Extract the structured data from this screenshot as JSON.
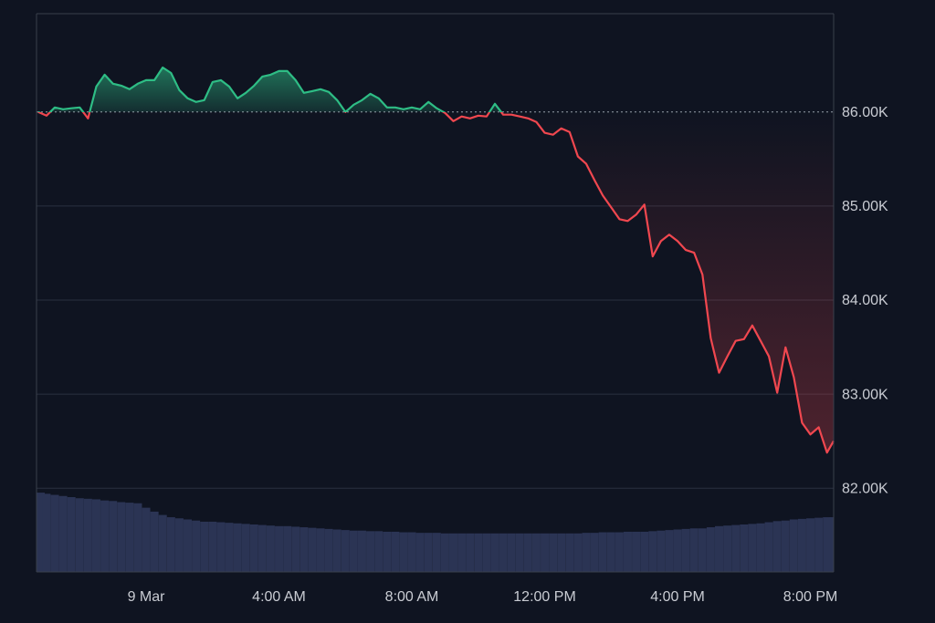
{
  "chart_data": {
    "type": "line",
    "x": [
      -3.25,
      -3.0,
      -2.75,
      -2.5,
      -2.25,
      -2.0,
      -1.75,
      -1.5,
      -1.25,
      -1.0,
      -0.75,
      -0.5,
      -0.25,
      0,
      0.25,
      0.5,
      0.75,
      1.0,
      1.25,
      1.5,
      1.75,
      2.0,
      2.25,
      2.5,
      2.75,
      3.0,
      3.25,
      3.5,
      3.75,
      4.0,
      4.25,
      4.5,
      4.75,
      5.0,
      5.25,
      5.5,
      5.75,
      6.0,
      6.25,
      6.5,
      6.75,
      7.0,
      7.25,
      7.5,
      7.75,
      8.0,
      8.25,
      8.5,
      8.75,
      9.0,
      9.25,
      9.5,
      9.75,
      10.0,
      10.25,
      10.5,
      10.75,
      11.0,
      11.25,
      11.5,
      11.75,
      12.0,
      12.25,
      12.5,
      12.75,
      13.0,
      13.25,
      13.5,
      13.75,
      14.0,
      14.25,
      14.5,
      14.75,
      15.0,
      15.25,
      15.5,
      15.75,
      16.0,
      16.25,
      16.5,
      16.75,
      17.0,
      17.25,
      17.5,
      17.75,
      18.0,
      18.25,
      18.5,
      18.75,
      19.0,
      19.25,
      19.5,
      19.75,
      20.0,
      20.25,
      20.5,
      20.7
    ],
    "series": [
      {
        "values": [
          86000,
          85961,
          86048,
          86029,
          86039,
          86048,
          85932,
          86270,
          86396,
          86300,
          86280,
          86242,
          86300,
          86338,
          86338,
          86473,
          86415,
          86232,
          86145,
          86106,
          86126,
          86319,
          86338,
          86270,
          86145,
          86203,
          86280,
          86377,
          86396,
          86435,
          86435,
          86338,
          86203,
          86222,
          86242,
          86213,
          86126,
          86000,
          86077,
          86126,
          86193,
          86145,
          86048,
          86048,
          86029,
          86048,
          86029,
          86106,
          86039,
          85990,
          85903,
          85952,
          85932,
          85961,
          85952,
          86087,
          85971,
          85971,
          85952,
          85932,
          85894,
          85778,
          85758,
          85826,
          85787,
          85527,
          85449,
          85275,
          85111,
          84986,
          84860,
          84841,
          84908,
          85015,
          84464,
          84628,
          84696,
          84628,
          84532,
          84503,
          84271,
          83595,
          83228,
          83402,
          83566,
          83585,
          83730,
          83566,
          83402,
          83016,
          83498,
          83179,
          82696,
          82571,
          82648,
          82378,
          82503
        ]
      },
      {
        "type": "bar",
        "axis": "y2",
        "color": "#2b3454",
        "values": [
          14.2,
          14.0,
          13.8,
          13.6,
          13.4,
          13.2,
          13.1,
          13.0,
          12.8,
          12.7,
          12.5,
          12.4,
          12.3,
          11.5,
          10.8,
          10.2,
          9.8,
          9.6,
          9.4,
          9.2,
          9.0,
          9.0,
          8.9,
          8.8,
          8.7,
          8.6,
          8.5,
          8.4,
          8.3,
          8.2,
          8.2,
          8.1,
          8.0,
          7.9,
          7.8,
          7.7,
          7.6,
          7.5,
          7.4,
          7.4,
          7.3,
          7.3,
          7.2,
          7.2,
          7.1,
          7.1,
          7.0,
          7.0,
          7.0,
          6.9,
          6.9,
          6.9,
          6.9,
          6.9,
          6.9,
          6.9,
          6.9,
          6.9,
          6.9,
          6.9,
          6.9,
          6.9,
          6.9,
          6.9,
          6.9,
          6.9,
          7.0,
          7.0,
          7.1,
          7.1,
          7.1,
          7.2,
          7.2,
          7.2,
          7.3,
          7.4,
          7.5,
          7.6,
          7.7,
          7.8,
          7.8,
          8.0,
          8.2,
          8.3,
          8.4,
          8.5,
          8.6,
          8.7,
          8.9,
          9.1,
          9.2,
          9.4,
          9.5,
          9.6,
          9.7,
          9.8,
          9.8
        ]
      }
    ],
    "baseline": 86000,
    "up_color": "#2ebd85",
    "down_color": "#f0474f",
    "xlim": [
      -3.3,
      20.7
    ],
    "xticks": [
      {
        "value": 0,
        "label": "9 Mar"
      },
      {
        "value": 4,
        "label": "4:00 AM"
      },
      {
        "value": 8,
        "label": "8:00 AM"
      },
      {
        "value": 12,
        "label": "12:00 PM"
      },
      {
        "value": 16,
        "label": "4:00 PM"
      },
      {
        "value": 20,
        "label": "8:00 PM"
      }
    ],
    "ylim": [
      81110,
      87045
    ],
    "yticks": [
      {
        "value": 82000,
        "label": "82.00K"
      },
      {
        "value": 83000,
        "label": "83.00K"
      },
      {
        "value": 84000,
        "label": "84.00K"
      },
      {
        "value": 85000,
        "label": "85.00K"
      },
      {
        "value": 86000,
        "label": "86.00K"
      }
    ],
    "y2lim": [
      0,
      100
    ],
    "grid": true
  }
}
